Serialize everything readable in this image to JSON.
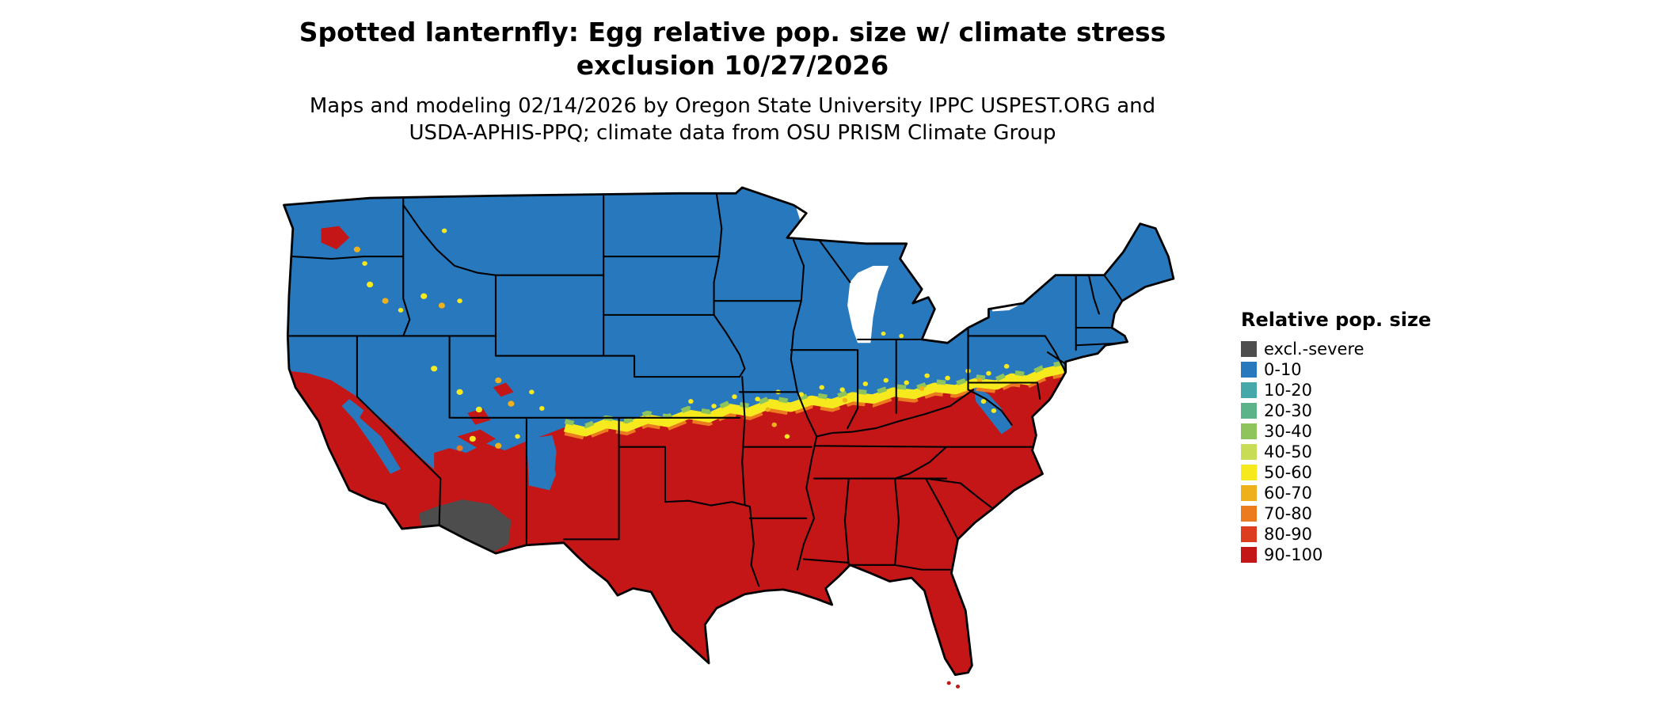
{
  "title": {
    "line1": "Spotted lanternfly: Egg relative pop. size w/ climate stress",
    "line2": "exclusion 10/27/2026"
  },
  "subtitle": {
    "line1": "Maps and modeling 02/14/2026 by Oregon State University IPPC USPEST.ORG and",
    "line2": "USDA-APHIS-PPQ; climate data from OSU PRISM Climate Group"
  },
  "legend": {
    "title": "Relative pop. size",
    "items": [
      {
        "label": "excl.-severe",
        "color": "#4d4d4d"
      },
      {
        "label": "0-10",
        "color": "#2878be"
      },
      {
        "label": "10-20",
        "color": "#46a8a8"
      },
      {
        "label": "20-30",
        "color": "#5bb489"
      },
      {
        "label": "30-40",
        "color": "#8fc45c"
      },
      {
        "label": "40-50",
        "color": "#c8dd55"
      },
      {
        "label": "50-60",
        "color": "#f6ea1f"
      },
      {
        "label": "60-70",
        "color": "#eeb11c"
      },
      {
        "label": "70-80",
        "color": "#ec7a1f"
      },
      {
        "label": "80-90",
        "color": "#dd3d1f"
      },
      {
        "label": "90-100",
        "color": "#c41616"
      }
    ]
  },
  "map": {
    "region": "Contiguous United States",
    "north_fill_class": "0-10",
    "south_fill_class": "90-100",
    "transition_band_classes": "30-80",
    "excluded_area": "southern Arizona / southeastern California (excl.-severe)"
  }
}
